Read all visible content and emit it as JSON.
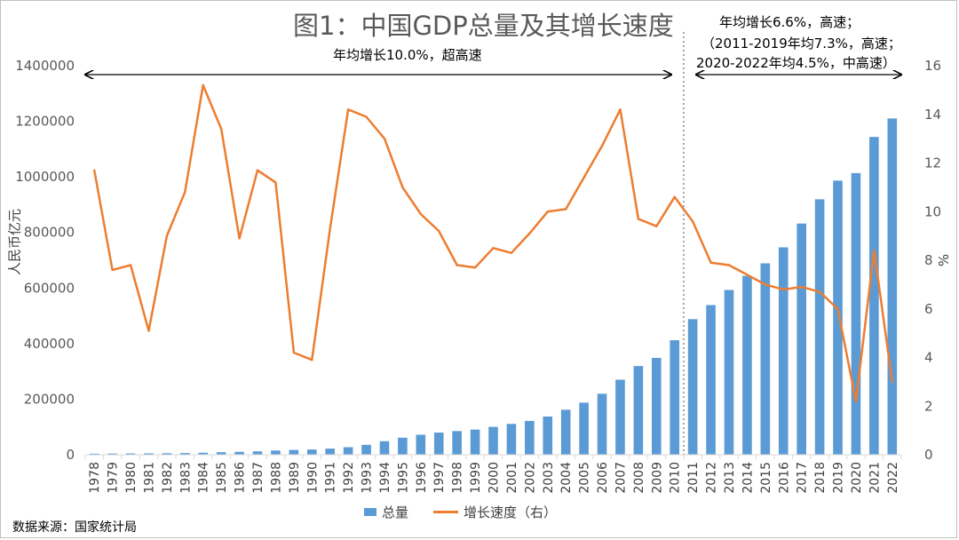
{
  "title": "图1：中国GDP总量及其增长速度",
  "annotations": {
    "left_period": "年均增长10.0%，超高速",
    "right_line1": "年均增长6.6%，高速；",
    "right_line2": "（2011-2019年均7.3%，高速；",
    "right_line3": "2020-2022年均4.5%，中高速）"
  },
  "source": "数据来源：国家统计局",
  "colors": {
    "bar": "#5b9bd5",
    "line": "#ed7d31",
    "axis": "#bfbfbf",
    "text": "#595959"
  },
  "chart_data": {
    "type": "bar",
    "title": "图1：中国GDP总量及其增长速度",
    "xlabel": "",
    "ylabel": "人民币亿元",
    "y2label": "%",
    "ylim": [
      0,
      1400000
    ],
    "y2lim": [
      0,
      16
    ],
    "yticks": [
      0,
      200000,
      400000,
      600000,
      800000,
      1000000,
      1200000,
      1400000
    ],
    "y2ticks": [
      0,
      2,
      4,
      6,
      8,
      10,
      12,
      14,
      16
    ],
    "grid": false,
    "legend_position": "bottom",
    "categories": [
      "1978",
      "1979",
      "1980",
      "1981",
      "1982",
      "1983",
      "1984",
      "1985",
      "1986",
      "1987",
      "1988",
      "1989",
      "1990",
      "1991",
      "1992",
      "1993",
      "1994",
      "1995",
      "1996",
      "1997",
      "1998",
      "1999",
      "2000",
      "2001",
      "2002",
      "2003",
      "2004",
      "2005",
      "2006",
      "2007",
      "2008",
      "2009",
      "2010",
      "2011",
      "2012",
      "2013",
      "2014",
      "2015",
      "2016",
      "2017",
      "2018",
      "2019",
      "2020",
      "2021",
      "2022"
    ],
    "series": [
      {
        "name": "总量",
        "type": "bar",
        "axis": "left",
        "values": [
          3679,
          4101,
          4588,
          4936,
          5373,
          6021,
          7279,
          9099,
          10376,
          12175,
          15180,
          17180,
          18873,
          22006,
          27195,
          35673,
          48638,
          61340,
          71814,
          79715,
          85196,
          90564,
          100280,
          110863,
          121717,
          137422,
          161840,
          187319,
          219439,
          270092,
          319245,
          348518,
          412119,
          487940,
          538580,
          592963,
          643563,
          688858,
          746395,
          832036,
          919281,
          986515,
          1013567,
          1143670,
          1210207
        ]
      },
      {
        "name": "增长速度（右）",
        "type": "line",
        "axis": "right",
        "values": [
          11.7,
          7.6,
          7.8,
          5.1,
          9.0,
          10.8,
          15.2,
          13.4,
          8.9,
          11.7,
          11.2,
          4.2,
          3.9,
          9.3,
          14.2,
          13.9,
          13.0,
          11.0,
          9.9,
          9.2,
          7.8,
          7.7,
          8.5,
          8.3,
          9.1,
          10.0,
          10.1,
          11.4,
          12.7,
          14.2,
          9.7,
          9.4,
          10.6,
          9.6,
          7.9,
          7.8,
          7.4,
          7.0,
          6.8,
          6.9,
          6.7,
          6.0,
          2.2,
          8.4,
          3.0
        ]
      }
    ]
  }
}
